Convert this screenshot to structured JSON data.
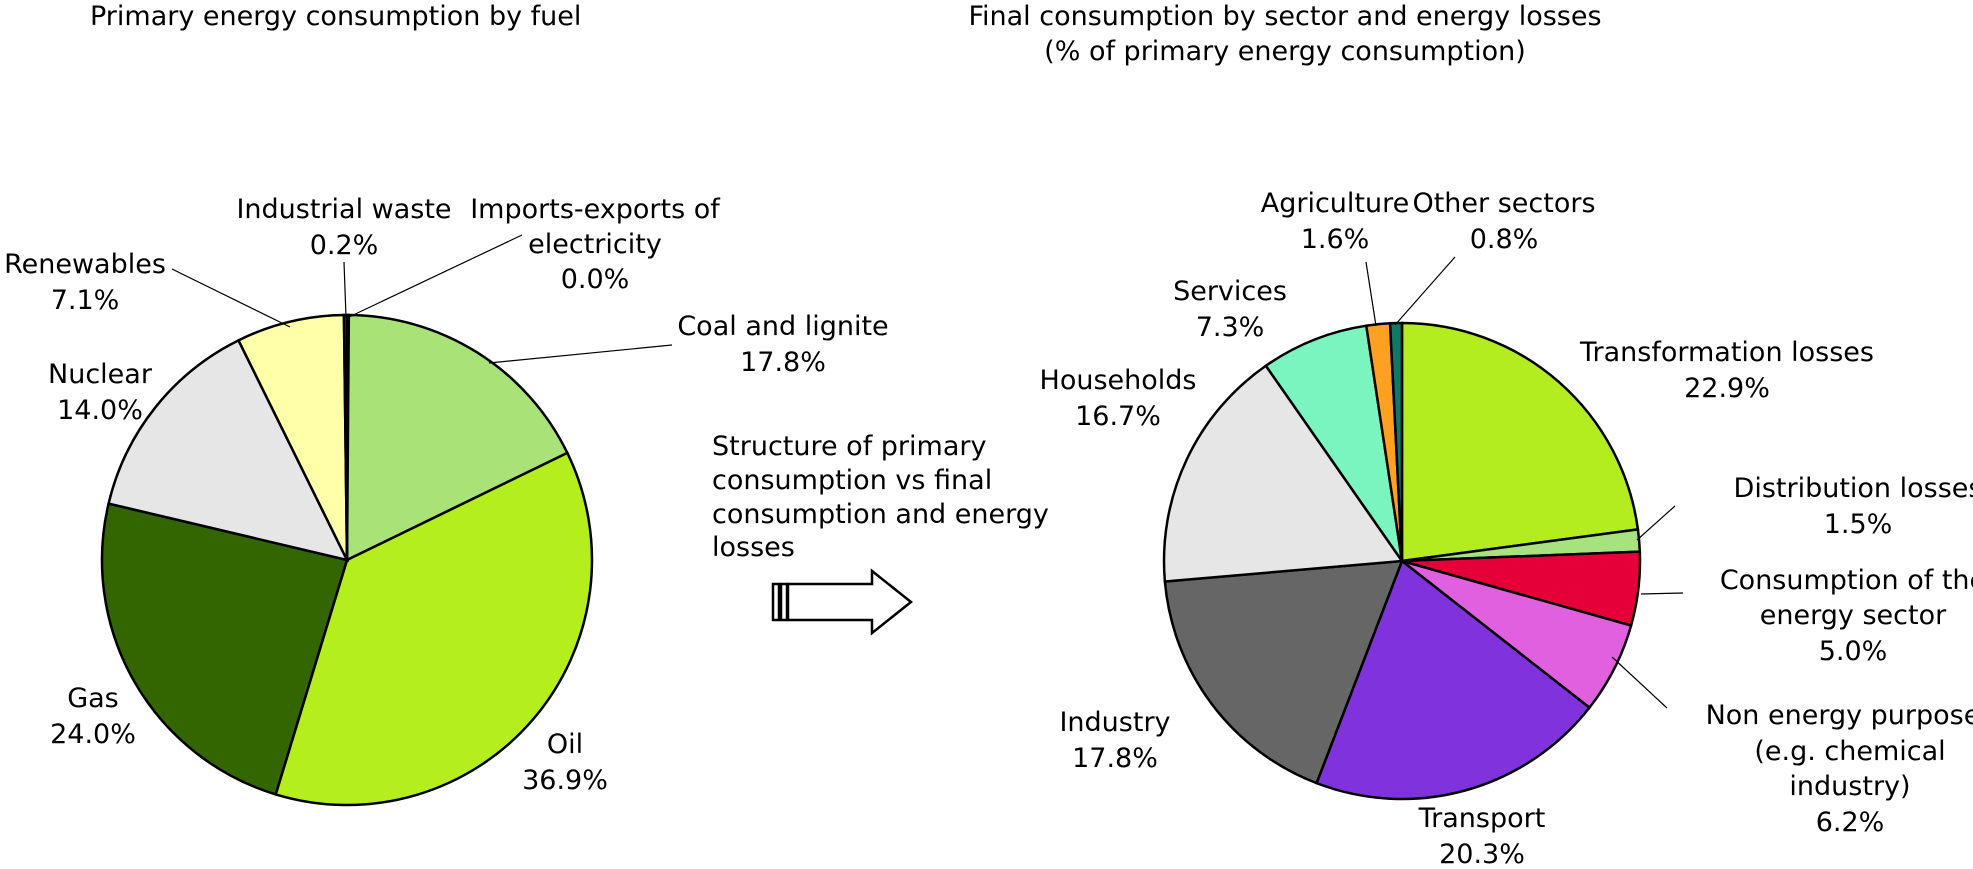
{
  "note": {
    "lines": [
      "Structure of primary",
      "consumption vs final",
      "consumption and energy",
      "losses"
    ]
  },
  "chart_data": [
    {
      "type": "pie",
      "title": "Primary energy consumption by fuel",
      "start": "12 o'clock, clockwise",
      "slices": [
        {
          "label": "Coal and lignite",
          "value": 17.8,
          "display": "17.8%",
          "color": "#a9e277"
        },
        {
          "label": "Oil",
          "value": 36.9,
          "display": "36.9%",
          "color": "#b5ee1d"
        },
        {
          "label": "Gas",
          "value": 24.0,
          "display": "24.0%",
          "color": "#336600"
        },
        {
          "label": "Nuclear",
          "value": 14.0,
          "display": "14.0%",
          "color": "#e6e6e6"
        },
        {
          "label": "Renewables",
          "value": 7.1,
          "display": "7.1%",
          "color": "#ffffaa"
        },
        {
          "label": "Industrial waste",
          "value": 0.2,
          "display": "0.2%",
          "color": "#0f8f7f"
        },
        {
          "label": "Imports-exports of electricity",
          "value": 0.0,
          "display": "0.0%",
          "color": "#1f4f2f"
        }
      ]
    },
    {
      "type": "pie",
      "title": "Final consumption by sector and energy losses",
      "subtitle": "(% of primary energy consumption)",
      "start": "12 o'clock, clockwise",
      "slices": [
        {
          "label": "Transformation losses",
          "value": 22.9,
          "display": "22.9%",
          "color": "#b3ec1f"
        },
        {
          "label": "Distribution losses",
          "value": 1.5,
          "display": "1.5%",
          "color": "#a6e27d"
        },
        {
          "label": "Consumption of the energy sector",
          "value": 5.0,
          "display": "5.0%",
          "color": "#e6003a"
        },
        {
          "label": "Non energy purposes (e.g. chemical industry)",
          "value": 6.2,
          "display": "6.2%",
          "color": "#e060e0"
        },
        {
          "label": "Transport",
          "value": 20.3,
          "display": "20.3%",
          "color": "#8033dd"
        },
        {
          "label": "Industry",
          "value": 17.8,
          "display": "17.8%",
          "color": "#666666"
        },
        {
          "label": "Households",
          "value": 16.7,
          "display": "16.7%",
          "color": "#e6e6e6"
        },
        {
          "label": "Services",
          "value": 7.3,
          "display": "7.3%",
          "color": "#7af5c0"
        },
        {
          "label": "Agriculture",
          "value": 1.6,
          "display": "1.6%",
          "color": "#ffa020"
        },
        {
          "label": "Other sectors",
          "value": 0.8,
          "display": "0.8%",
          "color": "#117766"
        }
      ]
    }
  ]
}
